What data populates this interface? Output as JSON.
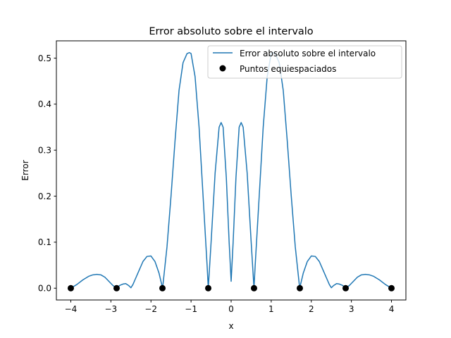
{
  "chart_data": {
    "type": "line",
    "title": "Error absoluto sobre el intervalo",
    "xlabel": "x",
    "ylabel": "Error",
    "xlim": [
      -4.36,
      4.36
    ],
    "ylim": [
      -0.0256,
      0.5376
    ],
    "xticks": [
      -4,
      -3,
      -2,
      -1,
      0,
      1,
      2,
      3,
      4
    ],
    "xtick_labels": [
      "−4",
      "−3",
      "−2",
      "−1",
      "0",
      "1",
      "2",
      "3",
      "4"
    ],
    "yticks": [
      0.0,
      0.1,
      0.2,
      0.3,
      0.4,
      0.5
    ],
    "ytick_labels": [
      "0.0",
      "0.1",
      "0.2",
      "0.3",
      "0.4",
      "0.5"
    ],
    "grid": false,
    "legend_position": "top-right",
    "series": [
      {
        "name": "Error absoluto sobre el intervalo",
        "kind": "line",
        "color": "#1f77b4",
        "x": [
          -4.0,
          -3.85,
          -3.7,
          -3.55,
          -3.45,
          -3.35,
          -3.25,
          -3.15,
          -3.05,
          -2.95,
          -2.86,
          -2.78,
          -2.7,
          -2.63,
          -2.56,
          -2.5,
          -2.45,
          -2.4,
          -2.3,
          -2.2,
          -2.1,
          -2.0,
          -1.9,
          -1.8,
          -1.71,
          -1.6,
          -1.5,
          -1.4,
          -1.3,
          -1.2,
          -1.1,
          -1.04,
          -1.0,
          -0.9,
          -0.8,
          -0.7,
          -0.6,
          -0.57,
          -0.5,
          -0.4,
          -0.3,
          -0.25,
          -0.2,
          -0.12,
          -0.05,
          0.0,
          0.05,
          0.12,
          0.2,
          0.25,
          0.3,
          0.4,
          0.5,
          0.57,
          0.6,
          0.7,
          0.8,
          0.9,
          1.0,
          1.04,
          1.1,
          1.2,
          1.3,
          1.4,
          1.5,
          1.6,
          1.71,
          1.8,
          1.9,
          2.0,
          2.1,
          2.2,
          2.3,
          2.4,
          2.45,
          2.5,
          2.56,
          2.63,
          2.7,
          2.78,
          2.86,
          2.95,
          3.05,
          3.15,
          3.25,
          3.35,
          3.45,
          3.55,
          3.7,
          3.85,
          4.0
        ],
        "y": [
          0.0,
          0.008,
          0.018,
          0.026,
          0.029,
          0.03,
          0.029,
          0.024,
          0.015,
          0.006,
          0.0,
          0.006,
          0.009,
          0.01,
          0.006,
          0.001,
          0.008,
          0.018,
          0.038,
          0.058,
          0.069,
          0.07,
          0.058,
          0.033,
          0.0,
          0.09,
          0.2,
          0.32,
          0.43,
          0.49,
          0.51,
          0.512,
          0.51,
          0.46,
          0.35,
          0.2,
          0.05,
          0.0,
          0.1,
          0.25,
          0.35,
          0.36,
          0.35,
          0.24,
          0.1,
          0.015,
          0.1,
          0.24,
          0.35,
          0.36,
          0.35,
          0.25,
          0.1,
          0.0,
          0.05,
          0.2,
          0.35,
          0.46,
          0.51,
          0.512,
          0.51,
          0.49,
          0.43,
          0.32,
          0.2,
          0.09,
          0.0,
          0.033,
          0.058,
          0.07,
          0.069,
          0.058,
          0.038,
          0.018,
          0.008,
          0.001,
          0.006,
          0.01,
          0.009,
          0.006,
          0.0,
          0.006,
          0.015,
          0.024,
          0.029,
          0.03,
          0.029,
          0.026,
          0.018,
          0.008,
          0.0
        ]
      },
      {
        "name": "Puntos equiespaciados",
        "kind": "scatter",
        "color": "#000000",
        "x": [
          -4.0,
          -2.857,
          -1.714,
          -0.571,
          0.571,
          1.714,
          2.857,
          4.0
        ],
        "y": [
          0,
          0,
          0,
          0,
          0,
          0,
          0,
          0
        ]
      }
    ]
  }
}
